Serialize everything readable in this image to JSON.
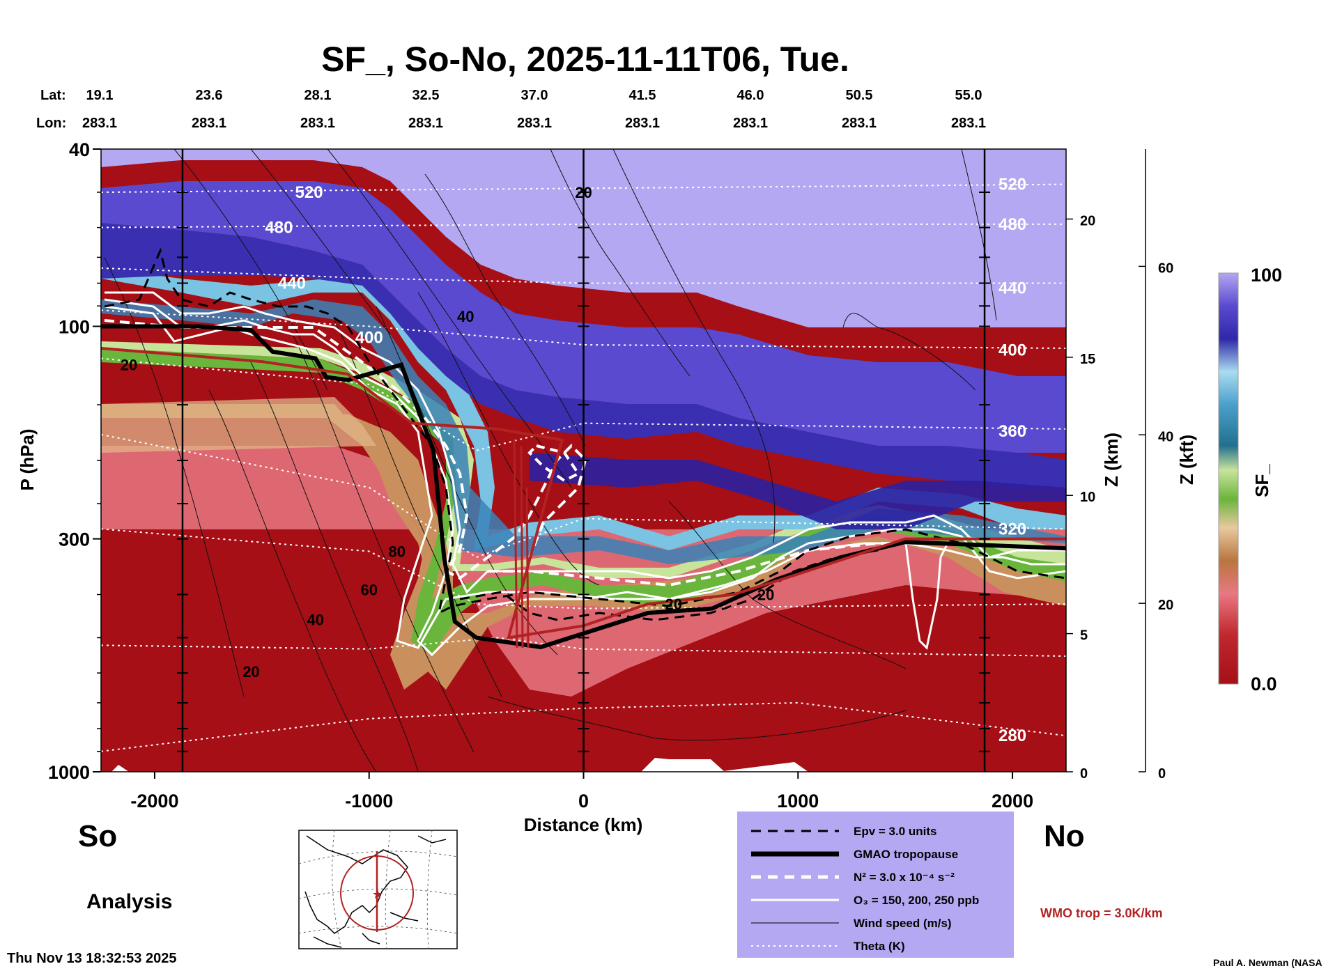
{
  "title": "SF_, So-No, 2025-11-11T06, Tue.",
  "header": {
    "lat_label": "Lat:",
    "lon_label": "Lon:",
    "lats": [
      "19.1",
      "23.6",
      "28.1",
      "32.5",
      "37.0",
      "41.5",
      "46.0",
      "50.5",
      "55.0"
    ],
    "lons": [
      "283.1",
      "283.1",
      "283.1",
      "283.1",
      "283.1",
      "283.1",
      "283.1",
      "283.1",
      "283.1"
    ]
  },
  "chart_data": {
    "type": "heatmap",
    "title": "SF_, So-No, 2025-11-11T06, Tue.",
    "xlabel": "Distance (km)",
    "ylabel": "P (hPa)",
    "xlim": [
      -2250,
      2250
    ],
    "ylim": [
      1000,
      40
    ],
    "y_scale": "log",
    "x_ticks": [
      -2000,
      -1000,
      0,
      1000,
      2000
    ],
    "x_tick_labels": [
      "-2000",
      "-1000",
      "0",
      "1000",
      "2000"
    ],
    "y_ticks": [
      40,
      100,
      300,
      1000
    ],
    "y_tick_labels": [
      "40",
      "100",
      "300",
      "1000"
    ],
    "z_km_ticks": [
      0,
      5,
      10,
      15,
      20
    ],
    "z_km_label": "Z (km)",
    "z_kft_ticks": [
      0,
      20,
      40,
      60
    ],
    "z_kft_label": "Z (kft)",
    "colorbar": {
      "label": "SF_",
      "min": 0.0,
      "max": 100,
      "min_label": "0.0",
      "max_label": "100"
    },
    "vertical_lines_km": [
      -1870,
      0,
      1870
    ],
    "theta_isentropes": [
      {
        "label": "520",
        "points": [
          [
            -2250,
            50
          ],
          [
            0,
            49
          ],
          [
            2250,
            48
          ]
        ]
      },
      {
        "label": "480",
        "points": [
          [
            -2250,
            60
          ],
          [
            0,
            59
          ],
          [
            2250,
            59
          ]
        ]
      },
      {
        "label": "440",
        "points": [
          [
            -2250,
            74
          ],
          [
            -1000,
            78
          ],
          [
            0,
            80
          ],
          [
            2250,
            80
          ]
        ]
      },
      {
        "label": "400",
        "points": [
          [
            -2250,
            92
          ],
          [
            -1000,
            100
          ],
          [
            0,
            110
          ],
          [
            2250,
            112
          ]
        ]
      },
      {
        "label": "360",
        "points": [
          [
            -2250,
            118
          ],
          [
            -1000,
            135
          ],
          [
            -500,
            190
          ],
          [
            0,
            165
          ],
          [
            2250,
            170
          ]
        ]
      },
      {
        "label": "320",
        "points": [
          [
            -2250,
            175
          ],
          [
            -1000,
            230
          ],
          [
            -500,
            330
          ],
          [
            0,
            270
          ],
          [
            2250,
            285
          ]
        ]
      },
      {
        "label": "",
        "points": [
          [
            -2250,
            285
          ],
          [
            -1000,
            320
          ],
          [
            -500,
            420
          ],
          [
            0,
            430
          ],
          [
            2250,
            420
          ]
        ]
      },
      {
        "label": "",
        "points": [
          [
            -2250,
            520
          ],
          [
            -1000,
            530
          ],
          [
            -400,
            500
          ],
          [
            0,
            530
          ],
          [
            2250,
            550
          ]
        ]
      },
      {
        "label": "280",
        "points": [
          [
            -2250,
            900
          ],
          [
            -1000,
            760
          ],
          [
            0,
            720
          ],
          [
            1000,
            700
          ],
          [
            2250,
            830
          ]
        ]
      }
    ],
    "theta_labels": [
      {
        "label": "520",
        "x": -1280,
        "p": 50
      },
      {
        "label": "480",
        "x": -1420,
        "p": 60
      },
      {
        "label": "440",
        "x": -1360,
        "p": 80
      },
      {
        "label": "400",
        "x": -1000,
        "p": 106
      },
      {
        "label": "520",
        "x": 2000,
        "p": 48
      },
      {
        "label": "480",
        "x": 2000,
        "p": 59
      },
      {
        "label": "440",
        "x": 2000,
        "p": 82
      },
      {
        "label": "400",
        "x": 2000,
        "p": 113
      },
      {
        "label": "360",
        "x": 2000,
        "p": 172
      },
      {
        "label": "320",
        "x": 2000,
        "p": 285
      },
      {
        "label": "280",
        "x": 2000,
        "p": 830
      }
    ],
    "wind_speed_labels": [
      {
        "label": "20",
        "x": 0,
        "p": 50
      },
      {
        "label": "40",
        "x": -550,
        "p": 95
      },
      {
        "label": "20",
        "x": -2120,
        "p": 122
      },
      {
        "label": "80",
        "x": -870,
        "p": 320
      },
      {
        "label": "60",
        "x": -1000,
        "p": 390
      },
      {
        "label": "40",
        "x": -1250,
        "p": 455
      },
      {
        "label": "20",
        "x": -1550,
        "p": 595
      },
      {
        "label": "20",
        "x": 420,
        "p": 420
      },
      {
        "label": "20",
        "x": 850,
        "p": 400
      }
    ],
    "gmao_tropopause": [
      [
        -2250,
        100
      ],
      [
        -1800,
        100
      ],
      [
        -1550,
        102
      ],
      [
        -1450,
        114
      ],
      [
        -1250,
        118
      ],
      [
        -1200,
        130
      ],
      [
        -1100,
        132
      ],
      [
        -850,
        122
      ],
      [
        -700,
        190
      ],
      [
        -650,
        330
      ],
      [
        -600,
        460
      ],
      [
        -500,
        500
      ],
      [
        -200,
        525
      ],
      [
        300,
        440
      ],
      [
        600,
        430
      ],
      [
        900,
        370
      ],
      [
        1200,
        330
      ],
      [
        1500,
        305
      ],
      [
        2250,
        315
      ]
    ],
    "wmo_tropopause": [
      [
        -2250,
        112
      ],
      [
        -1500,
        120
      ],
      [
        -1100,
        128
      ],
      [
        -800,
        165
      ],
      [
        -400,
        170
      ],
      [
        -100,
        180
      ],
      [
        -350,
        500
      ],
      [
        0,
        470
      ],
      [
        300,
        420
      ],
      [
        700,
        400
      ],
      [
        1000,
        360
      ],
      [
        1500,
        300
      ],
      [
        2250,
        300
      ]
    ],
    "legend": [
      {
        "style": "dashed-black",
        "label": "Epv = 3.0 units"
      },
      {
        "style": "thick-black",
        "label": "GMAO tropopause"
      },
      {
        "style": "dashed-white",
        "label": "N² = 3.0 x 10⁻⁴ s⁻²"
      },
      {
        "style": "solid-white",
        "label": "O₃ = 150, 200, 250 ppb"
      },
      {
        "style": "thin-black",
        "label": "Wind speed (m/s)"
      },
      {
        "style": "dotted-white",
        "label": "Theta (K)"
      }
    ]
  },
  "labels": {
    "south": "So",
    "north": "No",
    "analysis": "Analysis",
    "timestamp": "Thu Nov 13 18:32:53 2025",
    "credit": "Paul A. Newman (NASA",
    "wmo": "WMO trop = 3.0K/km"
  },
  "colors": {
    "sf_low": "#a50f15",
    "sf_pink": "#e87882",
    "sf_tan": "#c98f5c",
    "sf_green": "#6ab53c",
    "sf_lightgreen": "#c8e49a",
    "sf_lightblue": "#7ac3e3",
    "sf_blue": "#3a82b8",
    "sf_violet": "#4f3fc4",
    "sf_lavender": "#b4a8f2",
    "legend_bg": "#b4a8f2",
    "wmo_line": "#b22222"
  }
}
